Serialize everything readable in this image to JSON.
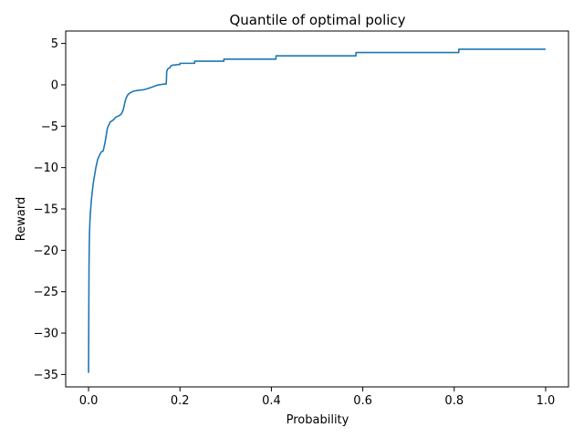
{
  "chart_data": {
    "type": "line",
    "title": "Quantile of optimal policy",
    "xlabel": "Probability",
    "ylabel": "Reward",
    "xlim": [
      -0.05,
      1.05
    ],
    "ylim": [
      -36.5,
      6.5
    ],
    "xticks": [
      0.0,
      0.2,
      0.4,
      0.6,
      0.8,
      1.0
    ],
    "xtick_labels": [
      "0.0",
      "0.2",
      "0.4",
      "0.6",
      "0.8",
      "1.0"
    ],
    "yticks": [
      5,
      0,
      -5,
      -10,
      -15,
      -20,
      -25,
      -30,
      -35
    ],
    "ytick_labels": [
      "5",
      "0",
      "−5",
      "−10",
      "−15",
      "−20",
      "−25",
      "−30",
      "−35"
    ],
    "grid": false,
    "legend": "none",
    "series": [
      {
        "color": "#1f77b4",
        "x": [
          0.0,
          0.0005,
          0.001,
          0.0015,
          0.002,
          0.003,
          0.004,
          0.006,
          0.008,
          0.01,
          0.013,
          0.016,
          0.02,
          0.024,
          0.028,
          0.032,
          0.036,
          0.039,
          0.041,
          0.043,
          0.045,
          0.047,
          0.05,
          0.055,
          0.058,
          0.06,
          0.064,
          0.068,
          0.072,
          0.076,
          0.08,
          0.083,
          0.086,
          0.09,
          0.095,
          0.1,
          0.105,
          0.11,
          0.12,
          0.13,
          0.14,
          0.15,
          0.155,
          0.16,
          0.165,
          0.17,
          0.171,
          0.173,
          0.175,
          0.178,
          0.18,
          0.183,
          0.186,
          0.19,
          0.196,
          0.2,
          0.2001,
          0.232,
          0.2321,
          0.296,
          0.2961,
          0.41,
          0.4101,
          0.585,
          0.5851,
          0.81,
          0.8101,
          1.0
        ],
        "y": [
          -34.8,
          -28.0,
          -22.0,
          -19.5,
          -18.0,
          -16.5,
          -15.5,
          -14.0,
          -13.0,
          -12.0,
          -11.0,
          -10.0,
          -9.0,
          -8.5,
          -8.1,
          -8.0,
          -7.0,
          -6.0,
          -5.3,
          -5.0,
          -4.8,
          -4.5,
          -4.4,
          -4.2,
          -4.0,
          -3.9,
          -3.8,
          -3.7,
          -3.5,
          -3.0,
          -2.0,
          -1.5,
          -1.2,
          -1.0,
          -0.85,
          -0.75,
          -0.7,
          -0.65,
          -0.6,
          -0.45,
          -0.25,
          -0.05,
          0.0,
          0.05,
          0.1,
          0.1,
          1.6,
          1.9,
          2.0,
          2.05,
          2.3,
          2.35,
          2.4,
          2.4,
          2.45,
          2.45,
          2.6,
          2.6,
          2.85,
          2.85,
          3.1,
          3.1,
          3.5,
          3.5,
          3.9,
          3.9,
          4.3,
          4.3
        ]
      }
    ]
  }
}
